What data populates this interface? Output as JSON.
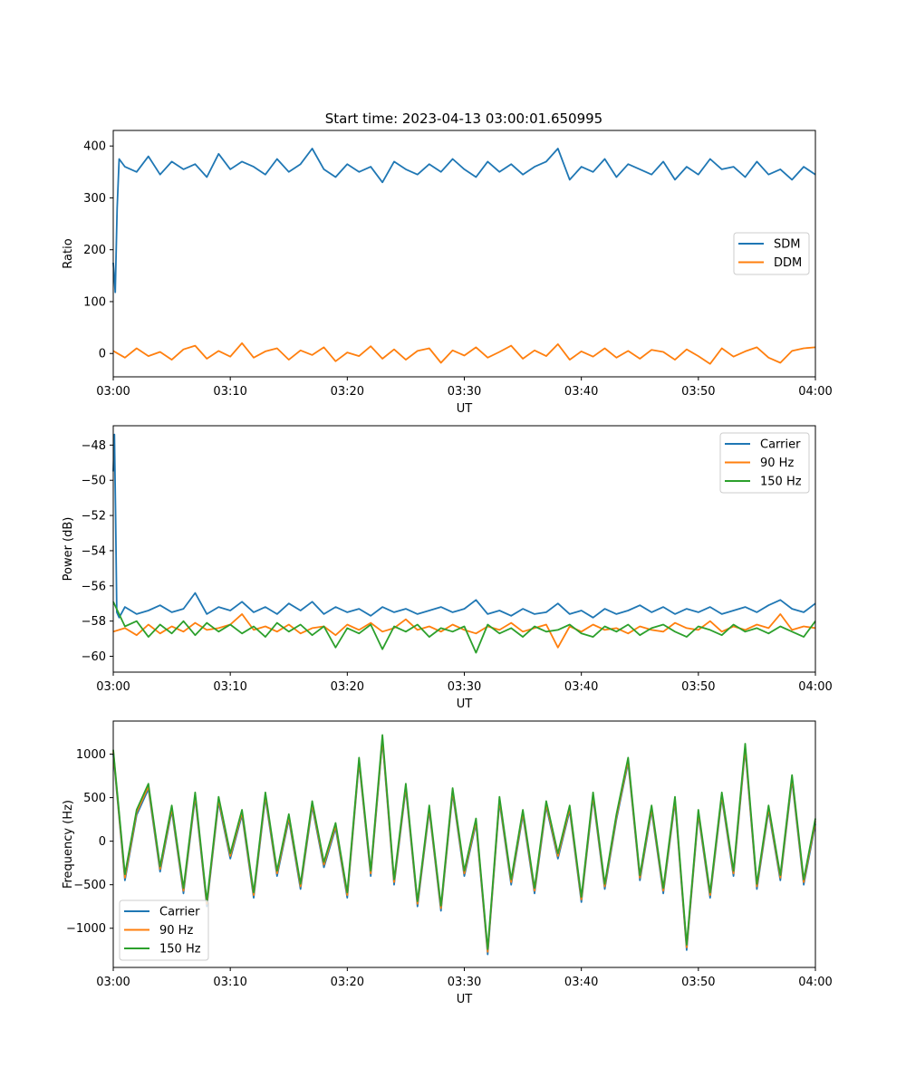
{
  "title": "Start time: 2023-04-13 03:00:01.650995",
  "colors": {
    "blue": "#1f77b4",
    "orange": "#ff7f0e",
    "green": "#2ca02c"
  },
  "chart_data": [
    {
      "type": "line",
      "xlabel": "UT",
      "ylabel": "Ratio",
      "xlim": [
        "03:00",
        "04:00"
      ],
      "ylim": [
        -45,
        430
      ],
      "xticks": [
        "03:00",
        "03:10",
        "03:20",
        "03:30",
        "03:40",
        "03:50",
        "04:00"
      ],
      "yticks": [
        0,
        100,
        200,
        300,
        400
      ],
      "legend": "center-right",
      "series": [
        {
          "name": "SDM",
          "color": "#1f77b4",
          "x": [
            "03:00",
            "03:00:10",
            "03:00:20",
            "03:00:30",
            "03:01",
            "03:02",
            "03:03",
            "03:04",
            "03:05",
            "03:06",
            "03:07",
            "03:08",
            "03:09",
            "03:10",
            "03:11",
            "03:12",
            "03:13",
            "03:14",
            "03:15",
            "03:16",
            "03:17",
            "03:18",
            "03:19",
            "03:20",
            "03:21",
            "03:22",
            "03:23",
            "03:24",
            "03:25",
            "03:26",
            "03:27",
            "03:28",
            "03:29",
            "03:30",
            "03:31",
            "03:32",
            "03:33",
            "03:34",
            "03:35",
            "03:36",
            "03:37",
            "03:38",
            "03:39",
            "03:40",
            "03:41",
            "03:42",
            "03:43",
            "03:44",
            "03:45",
            "03:46",
            "03:47",
            "03:48",
            "03:49",
            "03:50",
            "03:51",
            "03:52",
            "03:53",
            "03:54",
            "03:55",
            "03:56",
            "03:57",
            "03:58",
            "03:59",
            "04:00"
          ],
          "y": [
            175,
            118,
            280,
            375,
            360,
            350,
            380,
            345,
            370,
            355,
            365,
            340,
            385,
            355,
            370,
            360,
            345,
            375,
            350,
            365,
            395,
            355,
            340,
            365,
            350,
            360,
            330,
            370,
            355,
            345,
            365,
            350,
            375,
            355,
            340,
            370,
            350,
            365,
            345,
            360,
            370,
            395,
            335,
            360,
            350,
            375,
            340,
            365,
            355,
            345,
            370,
            335,
            360,
            345,
            375,
            355,
            360,
            340,
            370,
            345,
            355,
            335,
            360,
            345
          ]
        },
        {
          "name": "DDM",
          "color": "#ff7f0e",
          "x": [
            "03:00",
            "03:01",
            "03:02",
            "03:03",
            "03:04",
            "03:05",
            "03:06",
            "03:07",
            "03:08",
            "03:09",
            "03:10",
            "03:11",
            "03:12",
            "03:13",
            "03:14",
            "03:15",
            "03:16",
            "03:17",
            "03:18",
            "03:19",
            "03:20",
            "03:21",
            "03:22",
            "03:23",
            "03:24",
            "03:25",
            "03:26",
            "03:27",
            "03:28",
            "03:29",
            "03:30",
            "03:31",
            "03:32",
            "03:33",
            "03:34",
            "03:35",
            "03:36",
            "03:37",
            "03:38",
            "03:39",
            "03:40",
            "03:41",
            "03:42",
            "03:43",
            "03:44",
            "03:45",
            "03:46",
            "03:47",
            "03:48",
            "03:49",
            "03:50",
            "03:51",
            "03:52",
            "03:53",
            "03:54",
            "03:55",
            "03:56",
            "03:57",
            "03:58",
            "03:59",
            "04:00"
          ],
          "y": [
            5,
            -8,
            10,
            -5,
            3,
            -12,
            8,
            15,
            -10,
            5,
            -6,
            20,
            -8,
            4,
            10,
            -12,
            6,
            -3,
            12,
            -15,
            2,
            -5,
            14,
            -10,
            8,
            -12,
            5,
            10,
            -18,
            6,
            -4,
            12,
            -8,
            3,
            15,
            -10,
            6,
            -5,
            18,
            -12,
            4,
            -6,
            10,
            -8,
            5,
            -10,
            7,
            3,
            -12,
            8,
            -5,
            -20,
            10,
            -6,
            4,
            12,
            -8,
            -18,
            5,
            10,
            12
          ]
        }
      ]
    },
    {
      "type": "line",
      "xlabel": "UT",
      "ylabel": "Power (dB)",
      "xlim": [
        "03:00",
        "04:00"
      ],
      "ylim": [
        -60.9,
        -46.9
      ],
      "xticks": [
        "03:00",
        "03:10",
        "03:20",
        "03:30",
        "03:40",
        "03:50",
        "04:00"
      ],
      "yticks": [
        -48,
        -50,
        -52,
        -54,
        -56,
        -58,
        -60
      ],
      "legend": "top-right",
      "series": [
        {
          "name": "Carrier",
          "color": "#1f77b4",
          "x": [
            "03:00",
            "03:00:06",
            "03:00:12",
            "03:00:18",
            "03:00:30",
            "03:01",
            "03:02",
            "03:03",
            "03:04",
            "03:05",
            "03:06",
            "03:07",
            "03:08",
            "03:09",
            "03:10",
            "03:11",
            "03:12",
            "03:13",
            "03:14",
            "03:15",
            "03:16",
            "03:17",
            "03:18",
            "03:19",
            "03:20",
            "03:21",
            "03:22",
            "03:23",
            "03:24",
            "03:25",
            "03:26",
            "03:27",
            "03:28",
            "03:29",
            "03:30",
            "03:31",
            "03:32",
            "03:33",
            "03:34",
            "03:35",
            "03:36",
            "03:37",
            "03:38",
            "03:39",
            "03:40",
            "03:41",
            "03:42",
            "03:43",
            "03:44",
            "03:45",
            "03:46",
            "03:47",
            "03:48",
            "03:49",
            "03:50",
            "03:51",
            "03:52",
            "03:53",
            "03:54",
            "03:55",
            "03:56",
            "03:57",
            "03:58",
            "03:59",
            "04:00"
          ],
          "y": [
            -49.5,
            -47.4,
            -52,
            -57.5,
            -57.8,
            -57.2,
            -57.6,
            -57.4,
            -57.1,
            -57.5,
            -57.3,
            -56.4,
            -57.6,
            -57.2,
            -57.4,
            -56.9,
            -57.5,
            -57.2,
            -57.6,
            -57.0,
            -57.4,
            -56.9,
            -57.6,
            -57.2,
            -57.5,
            -57.3,
            -57.7,
            -57.2,
            -57.5,
            -57.3,
            -57.6,
            -57.4,
            -57.2,
            -57.5,
            -57.3,
            -56.8,
            -57.6,
            -57.4,
            -57.7,
            -57.3,
            -57.6,
            -57.5,
            -57.0,
            -57.6,
            -57.4,
            -57.8,
            -57.3,
            -57.6,
            -57.4,
            -57.1,
            -57.5,
            -57.2,
            -57.6,
            -57.3,
            -57.5,
            -57.2,
            -57.6,
            -57.4,
            -57.2,
            -57.5,
            -57.1,
            -56.8,
            -57.3,
            -57.5,
            -57.0
          ]
        },
        {
          "name": "90 Hz",
          "color": "#ff7f0e",
          "x": [
            "03:00",
            "03:01",
            "03:02",
            "03:03",
            "03:04",
            "03:05",
            "03:06",
            "03:07",
            "03:08",
            "03:09",
            "03:10",
            "03:11",
            "03:12",
            "03:13",
            "03:14",
            "03:15",
            "03:16",
            "03:17",
            "03:18",
            "03:19",
            "03:20",
            "03:21",
            "03:22",
            "03:23",
            "03:24",
            "03:25",
            "03:26",
            "03:27",
            "03:28",
            "03:29",
            "03:30",
            "03:31",
            "03:32",
            "03:33",
            "03:34",
            "03:35",
            "03:36",
            "03:37",
            "03:38",
            "03:39",
            "03:40",
            "03:41",
            "03:42",
            "03:43",
            "03:44",
            "03:45",
            "03:46",
            "03:47",
            "03:48",
            "03:49",
            "03:50",
            "03:51",
            "03:52",
            "03:53",
            "03:54",
            "03:55",
            "03:56",
            "03:57",
            "03:58",
            "03:59",
            "04:00"
          ],
          "y": [
            -58.6,
            -58.4,
            -58.8,
            -58.2,
            -58.7,
            -58.3,
            -58.6,
            -58.1,
            -58.5,
            -58.4,
            -58.2,
            -57.6,
            -58.5,
            -58.3,
            -58.6,
            -58.2,
            -58.7,
            -58.4,
            -58.3,
            -58.8,
            -58.2,
            -58.5,
            -58.1,
            -58.6,
            -58.4,
            -57.9,
            -58.5,
            -58.3,
            -58.6,
            -58.2,
            -58.5,
            -58.7,
            -58.3,
            -58.5,
            -58.1,
            -58.6,
            -58.4,
            -58.2,
            -59.5,
            -58.3,
            -58.6,
            -58.2,
            -58.5,
            -58.4,
            -58.7,
            -58.3,
            -58.5,
            -58.6,
            -58.1,
            -58.4,
            -58.5,
            -58.0,
            -58.6,
            -58.3,
            -58.5,
            -58.2,
            -58.4,
            -57.6,
            -58.5,
            -58.3,
            -58.4
          ]
        },
        {
          "name": "150 Hz",
          "color": "#2ca02c",
          "x": [
            "03:00",
            "03:01",
            "03:02",
            "03:03",
            "03:04",
            "03:05",
            "03:06",
            "03:07",
            "03:08",
            "03:09",
            "03:10",
            "03:11",
            "03:12",
            "03:13",
            "03:14",
            "03:15",
            "03:16",
            "03:17",
            "03:18",
            "03:19",
            "03:20",
            "03:21",
            "03:22",
            "03:23",
            "03:24",
            "03:25",
            "03:26",
            "03:27",
            "03:28",
            "03:29",
            "03:30",
            "03:31",
            "03:32",
            "03:33",
            "03:34",
            "03:35",
            "03:36",
            "03:37",
            "03:38",
            "03:39",
            "03:40",
            "03:41",
            "03:42",
            "03:43",
            "03:44",
            "03:45",
            "03:46",
            "03:47",
            "03:48",
            "03:49",
            "03:50",
            "03:51",
            "03:52",
            "03:53",
            "03:54",
            "03:55",
            "03:56",
            "03:57",
            "03:58",
            "03:59",
            "04:00"
          ],
          "y": [
            -56.9,
            -58.3,
            -58.0,
            -58.9,
            -58.2,
            -58.7,
            -58.0,
            -58.8,
            -58.1,
            -58.6,
            -58.2,
            -58.7,
            -58.3,
            -58.9,
            -58.1,
            -58.6,
            -58.2,
            -58.8,
            -58.3,
            -59.5,
            -58.4,
            -58.7,
            -58.2,
            -59.6,
            -58.3,
            -58.6,
            -58.2,
            -58.9,
            -58.4,
            -58.6,
            -58.3,
            -59.8,
            -58.2,
            -58.7,
            -58.4,
            -58.9,
            -58.3,
            -58.6,
            -58.5,
            -58.2,
            -58.7,
            -58.9,
            -58.3,
            -58.6,
            -58.2,
            -58.8,
            -58.4,
            -58.2,
            -58.6,
            -58.9,
            -58.3,
            -58.5,
            -58.8,
            -58.2,
            -58.6,
            -58.4,
            -58.7,
            -58.3,
            -58.6,
            -58.9,
            -58.0
          ]
        }
      ]
    },
    {
      "type": "line",
      "xlabel": "UT",
      "ylabel": "Frequency (Hz)",
      "xlim": [
        "03:00",
        "04:00"
      ],
      "ylim": [
        -1450,
        1380
      ],
      "xticks": [
        "03:00",
        "03:10",
        "03:20",
        "03:30",
        "03:40",
        "03:50",
        "04:00"
      ],
      "yticks": [
        1000,
        500,
        0,
        -500,
        -1000
      ],
      "legend": "bottom-left",
      "x": [
        "03:00",
        "03:01",
        "03:02",
        "03:03",
        "03:04",
        "03:05",
        "03:06",
        "03:07",
        "03:08",
        "03:09",
        "03:10",
        "03:11",
        "03:12",
        "03:13",
        "03:14",
        "03:15",
        "03:16",
        "03:17",
        "03:18",
        "03:19",
        "03:20",
        "03:21",
        "03:22",
        "03:23",
        "03:24",
        "03:25",
        "03:26",
        "03:27",
        "03:28",
        "03:29",
        "03:30",
        "03:31",
        "03:32",
        "03:33",
        "03:34",
        "03:35",
        "03:36",
        "03:37",
        "03:38",
        "03:39",
        "03:40",
        "03:41",
        "03:42",
        "03:43",
        "03:44",
        "03:45",
        "03:46",
        "03:47",
        "03:48",
        "03:49",
        "03:50",
        "03:51",
        "03:52",
        "03:53",
        "03:54",
        "03:55",
        "03:56",
        "03:57",
        "03:58",
        "03:59",
        "04:00"
      ],
      "series": [
        {
          "name": "Carrier",
          "color": "#1f77b4",
          "y": [
            1000,
            -450,
            300,
            600,
            -350,
            350,
            -600,
            500,
            -750,
            450,
            -200,
            300,
            -650,
            500,
            -400,
            250,
            -550,
            400,
            -300,
            150,
            -650,
            900,
            -400,
            1150,
            -500,
            600,
            -750,
            350,
            -800,
            550,
            -400,
            200,
            -1300,
            450,
            -500,
            300,
            -600,
            400,
            -200,
            350,
            -700,
            500,
            -550,
            250,
            900,
            -450,
            350,
            -600,
            450,
            -1250,
            300,
            -650,
            500,
            -400,
            1050,
            -550,
            350,
            -450,
            700,
            -500,
            200
          ]
        },
        {
          "name": "90 Hz",
          "color": "#ff7f0e",
          "y": [
            1030,
            -420,
            330,
            630,
            -320,
            380,
            -570,
            530,
            -720,
            480,
            -170,
            330,
            -620,
            530,
            -370,
            280,
            -520,
            430,
            -270,
            180,
            -620,
            930,
            -370,
            1180,
            -470,
            630,
            -720,
            380,
            -770,
            580,
            -370,
            230,
            -1270,
            480,
            -470,
            330,
            -570,
            430,
            -170,
            380,
            -670,
            530,
            -520,
            280,
            930,
            -420,
            380,
            -570,
            480,
            -1220,
            330,
            -620,
            530,
            -370,
            1080,
            -520,
            380,
            -420,
            730,
            -470,
            230
          ]
        },
        {
          "name": "150 Hz",
          "color": "#2ca02c",
          "y": [
            1050,
            -380,
            360,
            660,
            -290,
            410,
            -540,
            560,
            -690,
            510,
            -140,
            360,
            -590,
            560,
            -340,
            310,
            -490,
            460,
            -240,
            210,
            -590,
            960,
            -340,
            1220,
            -440,
            660,
            -690,
            410,
            -740,
            610,
            -340,
            260,
            -1240,
            510,
            -440,
            360,
            -540,
            460,
            -140,
            410,
            -640,
            560,
            -490,
            310,
            960,
            -390,
            410,
            -540,
            510,
            -1190,
            360,
            -590,
            560,
            -340,
            1120,
            -490,
            410,
            -390,
            760,
            -440,
            260
          ]
        }
      ]
    }
  ]
}
